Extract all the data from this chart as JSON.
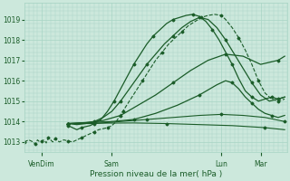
{
  "bg_color": "#cce8dc",
  "grid_color": "#a8d4c4",
  "line_color": "#1a5c28",
  "xlabel": "Pression niveau de la mer( hPa )",
  "ylim": [
    1012.5,
    1019.8
  ],
  "yticks": [
    1013,
    1014,
    1015,
    1016,
    1017,
    1018,
    1019
  ],
  "xtick_labels": [
    "VenDim",
    "Sam",
    "Lun",
    "Mar"
  ],
  "xtick_positions": [
    8,
    40,
    90,
    108
  ],
  "xlim": [
    0,
    120
  ],
  "series": [
    {
      "x": [
        0,
        2,
        4,
        5,
        6,
        7,
        8,
        9,
        10,
        11,
        12,
        13,
        14,
        16,
        18,
        20,
        22,
        24,
        26,
        28,
        30,
        32,
        34,
        36,
        38,
        40,
        42,
        45,
        48,
        51,
        54,
        57,
        60,
        63,
        66,
        69,
        72,
        75,
        78,
        81,
        84,
        87,
        90,
        92,
        95,
        98,
        101,
        104,
        107,
        110,
        113,
        116,
        119
      ],
      "y": [
        1013.0,
        1013.1,
        1013.0,
        1012.9,
        1013.1,
        1013.0,
        1013.05,
        1013.1,
        1012.95,
        1013.2,
        1013.1,
        1013.0,
        1013.15,
        1013.0,
        1013.1,
        1013.05,
        1013.0,
        1013.1,
        1013.2,
        1013.3,
        1013.4,
        1013.5,
        1013.6,
        1013.65,
        1013.7,
        1013.8,
        1014.0,
        1014.5,
        1015.0,
        1015.5,
        1016.0,
        1016.5,
        1017.0,
        1017.4,
        1017.8,
        1018.1,
        1018.4,
        1018.7,
        1018.9,
        1019.1,
        1019.2,
        1019.25,
        1019.2,
        1019.0,
        1018.6,
        1018.1,
        1017.5,
        1016.8,
        1016.0,
        1015.4,
        1015.1,
        1015.0,
        1015.1
      ],
      "marker": "D",
      "markersize": 1.5,
      "linewidth": 0.8,
      "linestyle": "--"
    },
    {
      "x": [
        20,
        22,
        24,
        26,
        28,
        30,
        32,
        35,
        38,
        41,
        44,
        47,
        50,
        53,
        56,
        59,
        62,
        65,
        68,
        71,
        74,
        77,
        80,
        83,
        86,
        89,
        92,
        95,
        98,
        101,
        104,
        107,
        110,
        113,
        116,
        119
      ],
      "y": [
        1013.8,
        1013.7,
        1013.6,
        1013.7,
        1013.75,
        1013.8,
        1013.9,
        1014.1,
        1014.5,
        1015.0,
        1015.6,
        1016.2,
        1016.8,
        1017.3,
        1017.8,
        1018.2,
        1018.5,
        1018.8,
        1019.0,
        1019.1,
        1019.2,
        1019.25,
        1019.15,
        1018.9,
        1018.5,
        1018.0,
        1017.4,
        1016.8,
        1016.1,
        1015.5,
        1015.2,
        1015.0,
        1015.1,
        1015.2,
        1015.1,
        1015.2
      ],
      "marker": "D",
      "markersize": 1.5,
      "linewidth": 0.9,
      "linestyle": "-"
    },
    {
      "x": [
        20,
        24,
        28,
        32,
        36,
        40,
        44,
        48,
        52,
        56,
        60,
        64,
        68,
        72,
        76,
        80,
        84,
        88,
        92,
        96,
        100,
        104,
        108,
        112,
        116,
        119
      ],
      "y": [
        1013.9,
        1013.85,
        1013.9,
        1014.0,
        1014.2,
        1014.5,
        1015.0,
        1015.6,
        1016.2,
        1016.8,
        1017.3,
        1017.8,
        1018.2,
        1018.6,
        1018.9,
        1019.1,
        1019.0,
        1018.6,
        1018.0,
        1017.3,
        1016.6,
        1015.9,
        1015.3,
        1015.0,
        1015.1,
        1015.2
      ],
      "marker": "D",
      "markersize": 1.5,
      "linewidth": 0.9,
      "linestyle": "-"
    },
    {
      "x": [
        20,
        28,
        36,
        44,
        52,
        60,
        68,
        76,
        84,
        92,
        100,
        108,
        116,
        119
      ],
      "y": [
        1013.9,
        1013.95,
        1014.05,
        1014.3,
        1014.8,
        1015.3,
        1015.9,
        1016.5,
        1017.0,
        1017.3,
        1017.2,
        1016.8,
        1017.0,
        1017.2
      ],
      "marker": "D",
      "markersize": 1.5,
      "linewidth": 0.9,
      "linestyle": "-"
    },
    {
      "x": [
        20,
        30,
        40,
        50,
        60,
        70,
        80,
        88,
        92,
        95,
        98,
        101,
        104,
        107,
        110,
        113,
        116,
        119
      ],
      "y": [
        1013.9,
        1013.95,
        1014.0,
        1014.1,
        1014.4,
        1014.8,
        1015.3,
        1015.8,
        1016.0,
        1015.9,
        1015.6,
        1015.2,
        1014.9,
        1014.6,
        1014.4,
        1014.3,
        1014.2,
        1014.3
      ],
      "marker": "D",
      "markersize": 1.5,
      "linewidth": 0.9,
      "linestyle": "-"
    },
    {
      "x": [
        20,
        32,
        44,
        56,
        68,
        80,
        90,
        100,
        110,
        119
      ],
      "y": [
        1013.9,
        1013.9,
        1014.0,
        1014.1,
        1014.2,
        1014.3,
        1014.35,
        1014.3,
        1014.2,
        1014.0
      ],
      "marker": "D",
      "markersize": 1.5,
      "linewidth": 0.8,
      "linestyle": "-"
    },
    {
      "x": [
        20,
        35,
        50,
        65,
        80,
        95,
        110,
        119
      ],
      "y": [
        1013.9,
        1013.92,
        1013.93,
        1013.9,
        1013.85,
        1013.8,
        1013.7,
        1013.6
      ],
      "marker": "D",
      "markersize": 1.5,
      "linewidth": 0.8,
      "linestyle": "-"
    }
  ]
}
